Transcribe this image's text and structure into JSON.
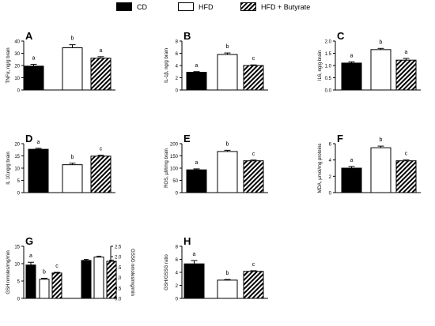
{
  "legend": {
    "items": [
      {
        "label": "CD",
        "fill": "black"
      },
      {
        "label": "HFD",
        "fill": "white"
      },
      {
        "label": "HFD + Butyrate",
        "fill": "hatch"
      }
    ]
  },
  "colors": {
    "bar_stroke": "#000000",
    "cd": "#000000",
    "hfd": "#ffffff"
  },
  "chart_data": [
    {
      "panel": "A",
      "type": "bar",
      "ylabel": "TNFα, ng/g brain",
      "ylim": [
        0,
        40
      ],
      "yticks": [
        0,
        10,
        20,
        30,
        40
      ],
      "categories": [
        "CD",
        "HFD",
        "HFD + Butyrate"
      ],
      "values": [
        19.5,
        34.5,
        26
      ],
      "errors": [
        1.5,
        2.5,
        1.2
      ],
      "letters": [
        "a",
        "b",
        "a"
      ]
    },
    {
      "panel": "B",
      "type": "bar",
      "ylabel": "IL-1β, ng/g brain",
      "ylim": [
        0,
        8
      ],
      "yticks": [
        0,
        2,
        4,
        6,
        8
      ],
      "categories": [
        "CD",
        "HFD",
        "HFD + Butyrate"
      ],
      "values": [
        2.9,
        5.8,
        4.0
      ],
      "errors": [
        0.1,
        0.25,
        0.1
      ],
      "letters": [
        "a",
        "b",
        "c"
      ]
    },
    {
      "panel": "C",
      "type": "bar",
      "ylabel": "IL6, ng/g brain",
      "ylim": [
        0,
        2.0
      ],
      "yticks": [
        0,
        0.5,
        1.0,
        1.5,
        2.0
      ],
      "categories": [
        "CD",
        "HFD",
        "HFD + Butyrate"
      ],
      "values": [
        1.1,
        1.65,
        1.22
      ],
      "errors": [
        0.05,
        0.05,
        0.07
      ],
      "letters": [
        "a",
        "b",
        "a"
      ]
    },
    {
      "panel": "D",
      "type": "bar",
      "ylabel": "IL 10,ng/g brain",
      "ylim": [
        0,
        20
      ],
      "yticks": [
        0,
        5,
        10,
        15,
        20
      ],
      "categories": [
        "CD",
        "HFD",
        "HFD + Butyrate"
      ],
      "values": [
        17.7,
        11.4,
        14.9
      ],
      "errors": [
        0.4,
        0.6,
        0.4
      ],
      "letters": [
        "a",
        "b",
        "c"
      ]
    },
    {
      "panel": "E",
      "type": "bar",
      "ylabel": "ROS, µM/mg brain",
      "ylim": [
        0,
        200
      ],
      "yticks": [
        0,
        50,
        100,
        150,
        200
      ],
      "categories": [
        "CD",
        "HFD",
        "HFD + Butyrate"
      ],
      "values": [
        93,
        168,
        130
      ],
      "errors": [
        4,
        5,
        3
      ],
      "letters": [
        "a",
        "b",
        "c"
      ]
    },
    {
      "panel": "F",
      "type": "bar",
      "ylabel": "MDA, µmol/mg proteins",
      "ylim": [
        0,
        6
      ],
      "yticks": [
        0,
        2,
        4,
        6
      ],
      "categories": [
        "CD",
        "HFD",
        "HFD + Butyrate"
      ],
      "values": [
        3.0,
        5.5,
        3.9
      ],
      "errors": [
        0.2,
        0.2,
        0.1
      ],
      "letters": [
        "a",
        "b",
        "c"
      ]
    },
    {
      "panel": "G",
      "type": "bar",
      "ylabel": "GSH nmoles/mg/min",
      "ylim": [
        0,
        15
      ],
      "yticks": [
        0,
        5,
        10,
        15
      ],
      "categories": [
        "CD",
        "HFD",
        "HFD + Butyrate"
      ],
      "values": [
        9.6,
        5.5,
        7.3
      ],
      "errors": [
        0.8,
        0.3,
        0.2
      ],
      "letters": [
        "a",
        "b",
        "c"
      ],
      "ylabel2": "GSSG nmoles/mg/min",
      "ylim2": [
        0,
        2.5
      ],
      "yticks2": [
        0,
        0.5,
        1.0,
        1.5,
        2.0,
        2.5
      ],
      "values2": [
        1.82,
        1.98,
        1.78
      ],
      "errors2": [
        0.05,
        0.04,
        0.05
      ]
    },
    {
      "panel": "H",
      "type": "bar",
      "ylabel": "GSH/GSSG ratio",
      "ylim": [
        0,
        8
      ],
      "yticks": [
        0,
        2,
        4,
        6,
        8
      ],
      "categories": [
        "CD",
        "HFD",
        "HFD + Butyrate"
      ],
      "values": [
        5.3,
        2.8,
        4.15
      ],
      "errors": [
        0.5,
        0.1,
        0.1
      ],
      "letters": [
        "a",
        "b",
        "c"
      ]
    }
  ]
}
